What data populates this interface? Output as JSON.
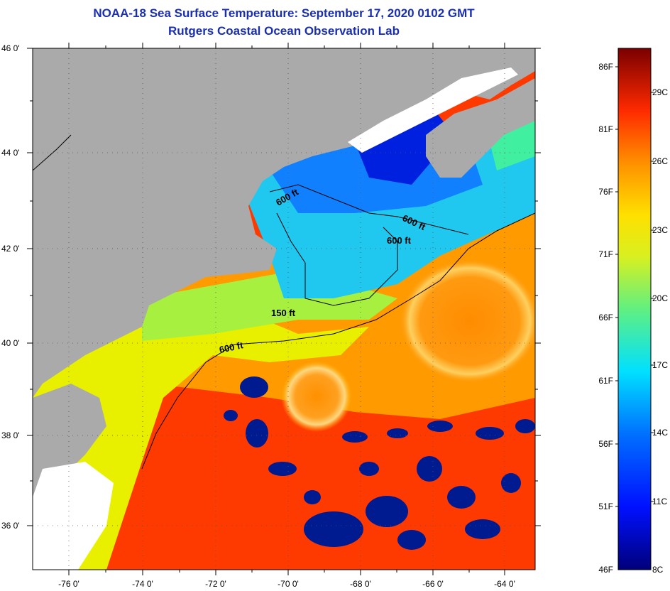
{
  "title": {
    "line1": "NOAA-18 Sea Surface Temperature:  September 17, 2020 0102 GMT",
    "line2": "Rutgers Coastal Ocean Observation Lab"
  },
  "axes": {
    "lat_labels": [
      "46 0'",
      "44 0'",
      "42 0'",
      "40 0'",
      "38 0'",
      "36 0'"
    ],
    "lon_labels": [
      "-76 0'",
      "-74 0'",
      "-72 0'",
      "-70 0'",
      "-68 0'",
      "-66 0'",
      "-64 0'"
    ]
  },
  "contours": [
    "600 ft",
    "600 ft",
    "600 ft",
    "150 ft",
    "600 ft"
  ],
  "colorbar": {
    "fahrenheit": [
      "86F",
      "81F",
      "76F",
      "71F",
      "66F",
      "61F",
      "56F",
      "51F",
      "46F"
    ],
    "celsius": [
      "29C",
      "26C",
      "23C",
      "20C",
      "17C",
      "14C",
      "11C",
      "8C"
    ]
  },
  "colors": {
    "land": "#aaaaaa",
    "title": "#1a2fb0",
    "cold": "#000080",
    "warm": "#ff2a00",
    "hot": "#7a0000"
  }
}
